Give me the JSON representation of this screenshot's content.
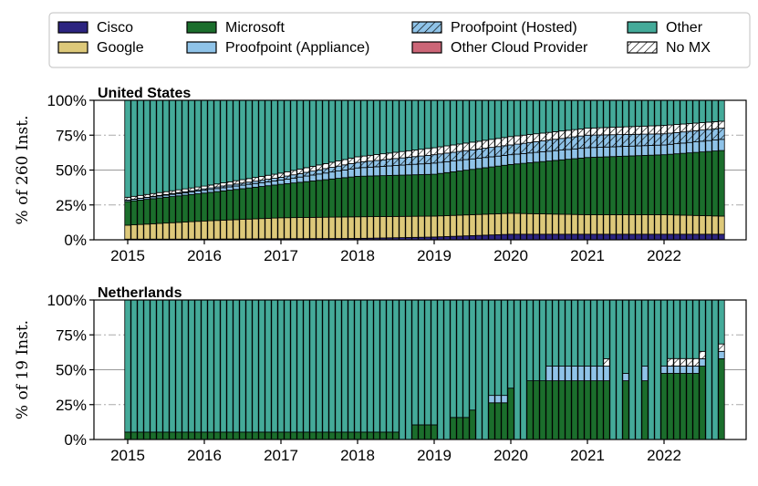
{
  "colors": {
    "Cisco": "#2c2480",
    "Google": "#ddc97a",
    "Microsoft": "#1b6e2c",
    "Proofpoint (Appliance)": "#8fc3e8",
    "Proofpoint (Hosted)": "#8fc3e8",
    "Other Cloud Provider": "#cc6677",
    "Other": "#44aa99",
    "No MX": "#ffffff"
  },
  "hatched": [
    "Proofpoint (Hosted)",
    "No MX"
  ],
  "legend": {
    "placement": "top",
    "items": [
      "Cisco",
      "Microsoft",
      "Proofpoint (Hosted)",
      "Other",
      "Google",
      "Proofpoint (Appliance)",
      "Other Cloud Provider",
      "No MX"
    ]
  },
  "chart_data": [
    {
      "type": "bar",
      "stacked": true,
      "title": "United States",
      "ylabel": "% of 260 Inst.",
      "ylim": [
        0,
        100
      ],
      "yticks": [
        "0%",
        "25%",
        "50%",
        "75%",
        "100%"
      ],
      "xticks": [
        "2015",
        "2016",
        "2017",
        "2018",
        "2019",
        "2020",
        "2021",
        "2022"
      ],
      "x_range": [
        2015.0,
        2022.75
      ],
      "grid": "y dash-dot",
      "series_order": [
        "Cisco",
        "Google",
        "Microsoft",
        "Proofpoint (Appliance)",
        "Proofpoint (Hosted)",
        "Other Cloud Provider",
        "No MX",
        "Other"
      ],
      "keyframes": [
        {
          "t": 2015.0,
          "Cisco": 0.5,
          "Google": 10,
          "Microsoft": 17,
          "Proofpoint (Appliance)": 1,
          "Proofpoint (Hosted)": 0,
          "Other Cloud Provider": 0,
          "No MX": 2
        },
        {
          "t": 2016.0,
          "Cisco": 0.5,
          "Google": 13,
          "Microsoft": 20,
          "Proofpoint (Appliance)": 2,
          "Proofpoint (Hosted)": 1,
          "Other Cloud Provider": 0,
          "No MX": 2
        },
        {
          "t": 2017.0,
          "Cisco": 0.8,
          "Google": 15,
          "Microsoft": 24,
          "Proofpoint (Appliance)": 3,
          "Proofpoint (Hosted)": 2,
          "Other Cloud Provider": 0,
          "No MX": 3
        },
        {
          "t": 2018.0,
          "Cisco": 1,
          "Google": 15.5,
          "Microsoft": 29,
          "Proofpoint (Appliance)": 6,
          "Proofpoint (Hosted)": 4,
          "Other Cloud Provider": 0,
          "No MX": 4
        },
        {
          "t": 2019.0,
          "Cisco": 2,
          "Google": 15,
          "Microsoft": 30,
          "Proofpoint (Appliance)": 8,
          "Proofpoint (Hosted)": 6,
          "Other Cloud Provider": 0,
          "No MX": 5
        },
        {
          "t": 2020.0,
          "Cisco": 4,
          "Google": 15,
          "Microsoft": 35,
          "Proofpoint (Appliance)": 7,
          "Proofpoint (Hosted)": 7,
          "Other Cloud Provider": 0,
          "No MX": 6
        },
        {
          "t": 2021.0,
          "Cisco": 4,
          "Google": 14,
          "Microsoft": 41,
          "Proofpoint (Appliance)": 7,
          "Proofpoint (Hosted)": 9,
          "Other Cloud Provider": 0,
          "No MX": 5
        },
        {
          "t": 2022.0,
          "Cisco": 4,
          "Google": 14,
          "Microsoft": 43,
          "Proofpoint (Appliance)": 7,
          "Proofpoint (Hosted)": 8,
          "Other Cloud Provider": 0,
          "No MX": 6
        },
        {
          "t": 2022.75,
          "Cisco": 4,
          "Google": 13,
          "Microsoft": 47,
          "Proofpoint (Appliance)": 8,
          "Proofpoint (Hosted)": 8,
          "Other Cloud Provider": 0,
          "No MX": 5
        }
      ]
    },
    {
      "type": "bar",
      "stacked": true,
      "title": "Netherlands",
      "ylabel": "% of 19 Inst.",
      "ylim": [
        0,
        100
      ],
      "yticks": [
        "0%",
        "25%",
        "50%",
        "75%",
        "100%"
      ],
      "xticks": [
        "2015",
        "2016",
        "2017",
        "2018",
        "2019",
        "2020",
        "2021",
        "2022"
      ],
      "x_range": [
        2015.0,
        2022.75
      ],
      "grid": "y dash-dot",
      "series_order": [
        "Cisco",
        "Google",
        "Microsoft",
        "Proofpoint (Appliance)",
        "Proofpoint (Hosted)",
        "Other Cloud Provider",
        "No MX",
        "Other"
      ],
      "segments": [
        {
          "from": 2015.0,
          "to": 2018.58,
          "Microsoft": 5.3
        },
        {
          "from": 2018.67,
          "to": 2019.08,
          "Microsoft": 10.5
        },
        {
          "from": 2019.17,
          "to": 2019.42,
          "Microsoft": 15.8
        },
        {
          "from": 2019.5,
          "to": 2019.58,
          "Microsoft": 21.1
        },
        {
          "from": 2019.67,
          "to": 2019.75,
          "Microsoft": 26.3,
          "Proofpoint (Appliance)": 5.3
        },
        {
          "from": 2019.83,
          "to": 2019.92,
          "Microsoft": 26.3,
          "Proofpoint (Appliance)": 5.3
        },
        {
          "from": 2020.0,
          "to": 2020.08,
          "Microsoft": 36.8
        },
        {
          "from": 2020.17,
          "to": 2020.17,
          "Microsoft": 36.8,
          "Proofpoint (Appliance)": 5.3
        },
        {
          "from": 2020.25,
          "to": 2020.42,
          "Microsoft": 42.1
        },
        {
          "from": 2020.5,
          "to": 2021.17,
          "Microsoft": 42.1,
          "Proofpoint (Appliance)": 10.5
        },
        {
          "from": 2021.25,
          "to": 2021.33,
          "Microsoft": 42.1,
          "Proofpoint (Appliance)": 10.5,
          "No MX": 5.3
        },
        {
          "from": 2021.42,
          "to": 2021.5,
          "Microsoft": 42.1,
          "Proofpoint (Appliance)": 5.3
        },
        {
          "from": 2021.58,
          "to": 2021.58,
          "Microsoft": 42.1,
          "Proofpoint (Appliance)": 10.5
        },
        {
          "from": 2021.67,
          "to": 2021.67,
          "Microsoft": 42.1,
          "Proofpoint (Appliance)": 10.5,
          "Other Cloud Provider": 5.3
        },
        {
          "from": 2021.75,
          "to": 2021.75,
          "Microsoft": 42.1,
          "Proofpoint (Appliance)": 10.5
        },
        {
          "from": 2021.83,
          "to": 2021.83,
          "Microsoft": 42.1,
          "Proofpoint (Appliance)": 10.5,
          "Other Cloud Provider": 5.3
        },
        {
          "from": 2021.92,
          "to": 2022.0,
          "Microsoft": 47.4,
          "Proofpoint (Appliance)": 5.3
        },
        {
          "from": 2022.08,
          "to": 2022.42,
          "Microsoft": 47.4,
          "Proofpoint (Appliance)": 5.3,
          "No MX": 5.3
        },
        {
          "from": 2022.5,
          "to": 2022.58,
          "Microsoft": 52.6,
          "Proofpoint (Appliance)": 5.3,
          "No MX": 5.3
        },
        {
          "from": 2022.67,
          "to": 2022.67,
          "Microsoft": 52.6,
          "Proofpoint (Appliance)": 5.3,
          "No MX": 5.3
        },
        {
          "from": 2022.75,
          "to": 2022.75,
          "Microsoft": 57.9,
          "Proofpoint (Appliance)": 5.3,
          "No MX": 5.3
        }
      ]
    }
  ]
}
